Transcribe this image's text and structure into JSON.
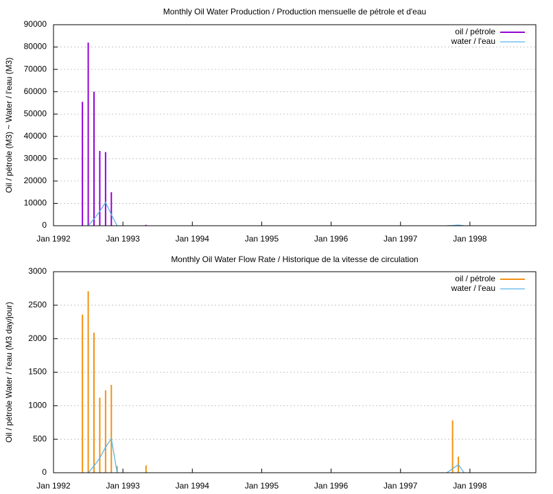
{
  "chart_data": [
    {
      "type": "impulse-line",
      "title": "Monthly Oil  Water Production / Production mensuelle de pétrole et d'eau",
      "ylabel": "Oil / pétrole (M3) ~  Water / l'eau (M3)",
      "xlim": [
        "1992-01",
        "1998-12"
      ],
      "xticks": [
        {
          "value": "1992-01",
          "label": "Jan 1992"
        },
        {
          "value": "1993-01",
          "label": "Jan 1993"
        },
        {
          "value": "1994-01",
          "label": "Jan 1994"
        },
        {
          "value": "1995-01",
          "label": "Jan 1995"
        },
        {
          "value": "1996-01",
          "label": "Jan 1996"
        },
        {
          "value": "1997-01",
          "label": "Jan 1997"
        },
        {
          "value": "1998-01",
          "label": "Jan 1998"
        }
      ],
      "ylim": [
        0,
        90000
      ],
      "yticks": [
        0,
        10000,
        20000,
        30000,
        40000,
        50000,
        60000,
        70000,
        80000,
        90000
      ],
      "grid": true,
      "legend": "top right",
      "series": [
        {
          "name": "oil / pétrole",
          "color": "#9400d3",
          "style": "impulse",
          "x": [
            "1992-06",
            "1992-07",
            "1992-08",
            "1992-09",
            "1992-10",
            "1992-11",
            "1993-05",
            "1997-10",
            "1997-11"
          ],
          "values": [
            55500,
            82000,
            60000,
            33500,
            33000,
            15000,
            400,
            300,
            200
          ]
        },
        {
          "name": "water / l'eau",
          "color": "#56b4e9",
          "style": "line",
          "x": [
            "1992-07",
            "1992-08",
            "1992-09",
            "1992-10",
            "1992-11",
            "1992-12",
            "1997-09",
            "1997-10",
            "1997-11",
            "1997-12"
          ],
          "values": [
            0,
            3000,
            6500,
            10500,
            5000,
            0,
            0,
            100,
            300,
            0
          ]
        }
      ]
    },
    {
      "type": "impulse-line",
      "title": "Monthly Oil  Water Flow Rate / Historique de la vitesse de circulation",
      "ylabel": "Oil / pétrole  Water / l'eau (M3 day/jour)",
      "xlim": [
        "1992-01",
        "1998-12"
      ],
      "xticks": [
        {
          "value": "1992-01",
          "label": "Jan 1992"
        },
        {
          "value": "1993-01",
          "label": "Jan 1993"
        },
        {
          "value": "1994-01",
          "label": "Jan 1994"
        },
        {
          "value": "1995-01",
          "label": "Jan 1995"
        },
        {
          "value": "1996-01",
          "label": "Jan 1996"
        },
        {
          "value": "1997-01",
          "label": "Jan 1997"
        },
        {
          "value": "1998-01",
          "label": "Jan 1998"
        }
      ],
      "ylim": [
        0,
        3000
      ],
      "yticks": [
        0,
        500,
        1000,
        1500,
        2000,
        2500,
        3000
      ],
      "grid": true,
      "legend": "top right",
      "series": [
        {
          "name": "oil / pétrole",
          "color": "#f39111",
          "style": "impulse",
          "x": [
            "1992-06",
            "1992-07",
            "1992-08",
            "1992-09",
            "1992-10",
            "1992-11",
            "1992-12",
            "1993-05",
            "1997-10",
            "1997-11"
          ],
          "values": [
            2360,
            2710,
            2090,
            1120,
            1230,
            1310,
            100,
            110,
            780,
            240
          ]
        },
        {
          "name": "water / l'eau",
          "color": "#56b4e9",
          "style": "line",
          "x": [
            "1992-07",
            "1992-08",
            "1992-09",
            "1992-10",
            "1992-11",
            "1992-12",
            "1997-09",
            "1997-10",
            "1997-11",
            "1997-12"
          ],
          "values": [
            0,
            100,
            220,
            380,
            510,
            0,
            0,
            60,
            120,
            0
          ]
        }
      ]
    }
  ]
}
